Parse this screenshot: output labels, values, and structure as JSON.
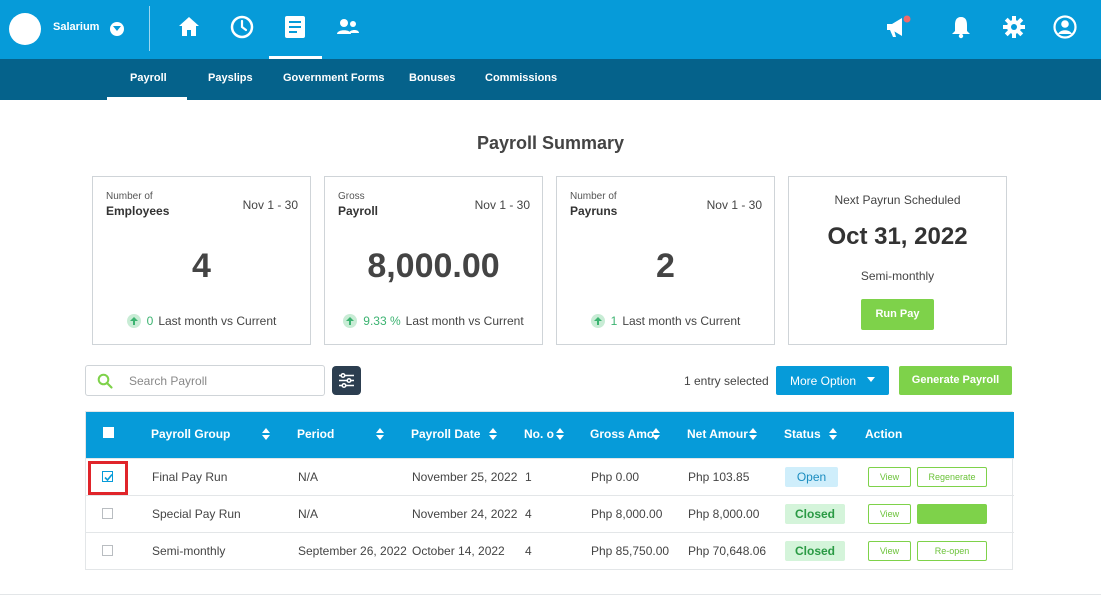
{
  "topbar": {
    "brand": "Salarium",
    "icons": [
      "home-icon",
      "clock-icon",
      "document-icon",
      "people-icon",
      "megaphone-icon",
      "bell-icon",
      "gear-icon",
      "user-icon"
    ],
    "bg_color": "#069bd9",
    "notification_dot_color": "#f06a6a"
  },
  "subnav": {
    "items": [
      "Payroll",
      "Payslips",
      "Government Forms",
      "Bonuses",
      "Commissions"
    ],
    "active": "Payroll",
    "bg_color": "#05628b"
  },
  "summary": {
    "title": "Payroll Summary",
    "cards": [
      {
        "small": "Number of",
        "label": "Employees",
        "period": "Nov 1 - 30",
        "value": "4",
        "trend_value": "0",
        "trend_text": "Last month vs Current"
      },
      {
        "small": "Gross",
        "label": "Payroll",
        "period": "Nov 1 - 30",
        "value": "8,000.00",
        "trend_value": "9.33 %",
        "trend_text": "Last month vs Current"
      },
      {
        "small": "Number of",
        "label": "Payruns",
        "period": "Nov 1 - 30",
        "value": "2",
        "trend_value": "1",
        "trend_text": "Last month vs Current"
      }
    ],
    "next": {
      "title": "Next Payrun Scheduled",
      "date": "Oct 31, 2022",
      "frequency": "Semi-monthly",
      "button": "Run Pay"
    }
  },
  "toolbar": {
    "search_placeholder": "Search Payroll",
    "search_value": "",
    "selected_text": "1 entry selected",
    "more_option": "More Option",
    "generate": "Generate Payroll"
  },
  "table": {
    "columns": [
      "Payroll Group",
      "Period",
      "Payroll Date",
      "No. o",
      "Gross Amo",
      "Net Amour",
      "Status",
      "Action"
    ],
    "rows": [
      {
        "checked": true,
        "group": "Final Pay Run",
        "period": "N/A",
        "date": "November 25, 2022",
        "no": "1",
        "gross": "Php 0.00",
        "net": "Php 103.85",
        "status": "Open",
        "action1": "View",
        "action2": "Regenerate"
      },
      {
        "checked": false,
        "group": "Special Pay Run",
        "period": "N/A",
        "date": "November 24, 2022",
        "no": "4",
        "gross": "Php 8,000.00",
        "net": "Php 8,000.00",
        "status": "Closed",
        "action1": "View",
        "action2": ""
      },
      {
        "checked": false,
        "group": "Semi-monthly",
        "period": "September 26, 2022",
        "date": "October 14, 2022",
        "no": "4",
        "gross": "Php 85,750.00",
        "net": "Php 70,648.06",
        "status": "Closed",
        "action1": "View",
        "action2": "Re-open"
      }
    ]
  },
  "colors": {
    "accent": "#069bd9",
    "green": "#7ed24a",
    "highlight": "#e0242a"
  }
}
